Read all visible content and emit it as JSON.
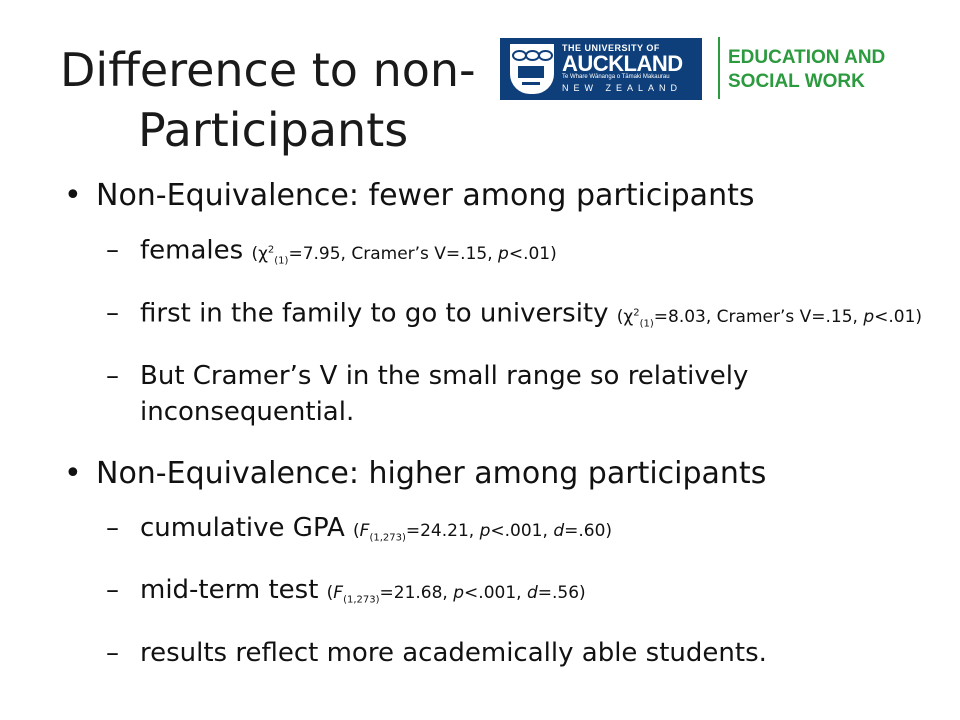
{
  "slide": {
    "title_line1": "Difference to non-",
    "title_line2": "Participants"
  },
  "logo": {
    "line1": "THE UNIVERSITY OF",
    "line2": "AUCKLAND",
    "line3": "Te Whare Wānanga o Tāmaki Makaurau",
    "line4": "NEW ZEALAND",
    "brand_color": "#0f3f7a"
  },
  "faculty": {
    "line1": "EDUCATION AND",
    "line2": "SOCIAL WORK",
    "color": "#2c9a3e"
  },
  "sections": [
    {
      "heading": "Non-Equivalence: fewer among participants",
      "items": [
        {
          "main": "females",
          "stat_open": "(χ",
          "sup": "2",
          "sub": "(1)",
          "stat_rest": "=7.95, Cramer’s V=.15, ",
          "p": "p",
          "stat_end": "<.01)"
        },
        {
          "main": "first in the family to go to university",
          "stat_open": "(χ",
          "sup": "2",
          "sub": "(1)",
          "stat_rest": "=8.03, Cramer’s V=.15, ",
          "p": "p",
          "stat_end": "<.01)"
        },
        {
          "main": "But Cramer’s V in the small range so relatively inconsequential."
        }
      ]
    },
    {
      "heading": "Non-Equivalence: higher among participants",
      "items": [
        {
          "main": "cumulative GPA",
          "stat_open": "(",
          "f": "F",
          "sub": "(1,273)",
          "stat_rest": "=24.21, ",
          "p": "p",
          "stat_mid": "<.001, ",
          "d": "d",
          "stat_end": "=.60)"
        },
        {
          "main": "mid-term test",
          "stat_open": "(",
          "f": "F",
          "sub": "(1,273)",
          "stat_rest": "=21.68, ",
          "p": "p",
          "stat_mid": "<.001, ",
          "d": "d",
          "stat_end": "=.56)"
        },
        {
          "main": "results reflect more academically able students."
        }
      ]
    }
  ]
}
